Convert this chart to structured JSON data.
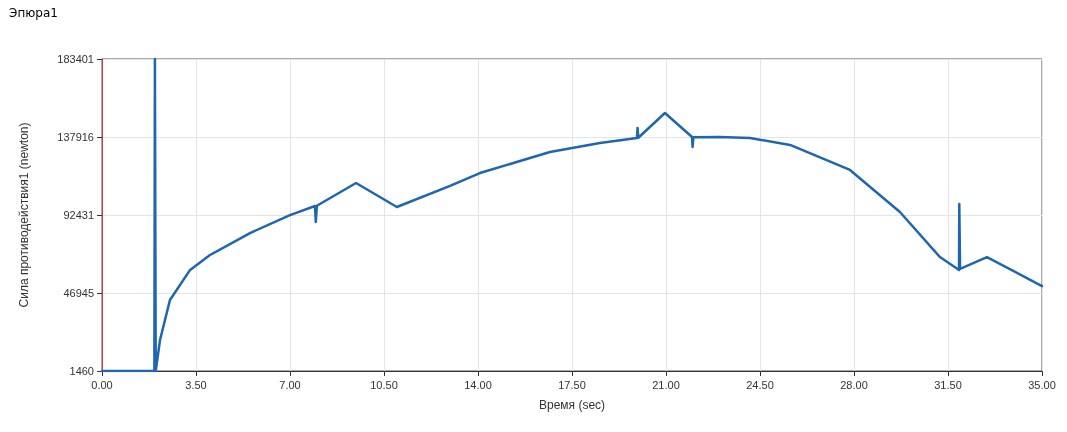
{
  "chart_data": {
    "type": "line",
    "title": "Эпюра1",
    "xlabel": "Время (sec)",
    "ylabel": "Сила противодействия1 (newton)",
    "series": [
      {
        "color": "#1f66b0",
        "x": [
          0,
          1.95,
          1.97,
          2.0,
          2.16,
          2.53,
          3.28,
          4.02,
          5.51,
          7.0,
          7.93,
          7.96,
          8.0,
          9.46,
          10.98,
          12.96,
          14.07,
          16.68,
          18.54,
          19.92,
          19.94,
          19.97,
          20.96,
          21.97,
          21.99,
          22.02,
          23.0,
          24.13,
          25.62,
          27.85,
          29.71,
          31.2,
          31.91,
          31.92,
          31.95,
          32.95,
          35
        ],
        "values": [
          1460,
          1460,
          183401,
          1460,
          19540,
          42900,
          60400,
          69100,
          81900,
          92400,
          97700,
          88400,
          97800,
          111100,
          97100,
          109400,
          116900,
          129200,
          134400,
          137300,
          143200,
          137500,
          151900,
          137900,
          132100,
          137800,
          137900,
          137300,
          133300,
          118700,
          94200,
          67900,
          60400,
          98900,
          61000,
          67900,
          51000
        ]
      }
    ],
    "xlim": [
      0,
      35
    ],
    "xticks": [
      {
        "value": 0,
        "label": "0.00"
      },
      {
        "value": 3.5,
        "label": "3.50"
      },
      {
        "value": 7,
        "label": "7.00"
      },
      {
        "value": 10.5,
        "label": "10.50"
      },
      {
        "value": 14,
        "label": "14.00"
      },
      {
        "value": 17.5,
        "label": "17.50"
      },
      {
        "value": 21,
        "label": "21.00"
      },
      {
        "value": 24.5,
        "label": "24.50"
      },
      {
        "value": 28,
        "label": "28.00"
      },
      {
        "value": 31.5,
        "label": "31.50"
      },
      {
        "value": 35,
        "label": "35.00"
      }
    ],
    "ylim": [
      1460,
      183401
    ],
    "yticks": [
      1460,
      46945,
      92431,
      137916,
      183401
    ],
    "grid": true,
    "marker": "none",
    "line_style": "solid"
  }
}
